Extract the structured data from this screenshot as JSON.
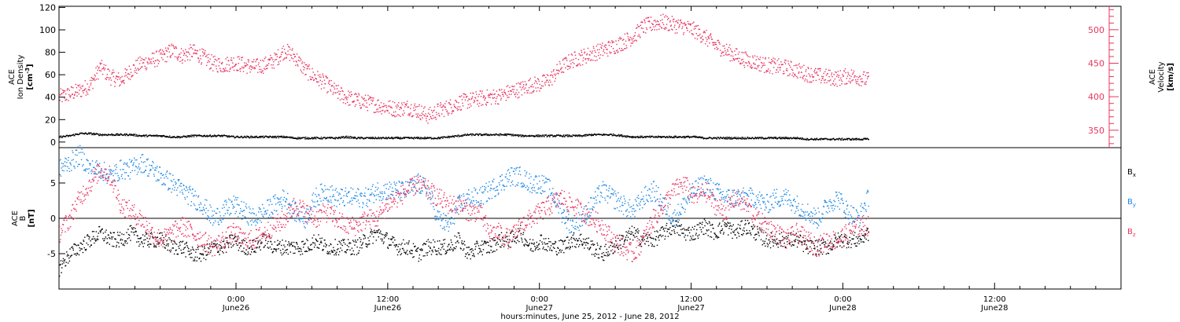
{
  "colors": {
    "black": "#000000",
    "pink": "#e8345f",
    "blue": "#1e88e5"
  },
  "chart_data": [
    {
      "type": "scatter",
      "panel": "top",
      "left_axis": {
        "label_lines": [
          "ACE",
          "Ion Density"
        ],
        "unit_base": "[cm",
        "unit_sup": "-3",
        "unit_end": "]",
        "ylim": [
          -5,
          121
        ],
        "ticks": [
          "0",
          "20",
          "40",
          "60",
          "80",
          "100",
          "120"
        ],
        "tick_values": [
          0,
          20,
          40,
          60,
          80,
          100,
          120
        ]
      },
      "right_axis": {
        "label_lines": [
          "ACE",
          "Velocity",
          "[km/s]"
        ],
        "ylim": [
          324,
          535
        ],
        "ticks": [
          "350",
          "400",
          "450",
          "500"
        ],
        "tick_values": [
          350,
          400,
          450,
          500
        ],
        "color": "#e8345f"
      },
      "series": [
        {
          "axis": "left",
          "color": "#000000",
          "x": [
            0,
            1,
            2,
            3,
            4,
            5,
            6,
            7,
            8,
            9,
            10,
            11,
            12,
            13,
            14,
            15,
            16,
            17,
            18,
            19,
            20,
            21,
            22,
            23,
            24,
            25,
            26,
            27,
            28,
            29,
            30,
            31,
            32,
            33,
            34,
            35,
            36,
            37,
            38,
            39,
            40,
            41,
            42,
            43,
            44,
            45,
            46,
            47,
            48,
            49,
            50,
            51,
            52,
            53,
            54,
            55,
            56,
            57,
            58,
            59,
            60,
            61,
            62,
            63,
            64,
            65,
            66,
            67,
            68,
            69,
            70,
            71,
            72,
            73,
            74,
            75,
            76,
            77,
            78,
            79
          ],
          "y": [
            5,
            6,
            8,
            8,
            7,
            7,
            7,
            7,
            6,
            6,
            6,
            5,
            5,
            6,
            6,
            6,
            6,
            5,
            5,
            5,
            5,
            5,
            5,
            4,
            4,
            4,
            4,
            4,
            5,
            4,
            4,
            4,
            4,
            4,
            4,
            4,
            4,
            4,
            5,
            6,
            7,
            7,
            7,
            7,
            7,
            6,
            6,
            6,
            6,
            6,
            6,
            6,
            7,
            7,
            7,
            6,
            5,
            5,
            5,
            5,
            5,
            5,
            5,
            4,
            4,
            4,
            4,
            4,
            4,
            4,
            4,
            4,
            4,
            3,
            3,
            3,
            3,
            3,
            3,
            3
          ]
        },
        {
          "axis": "right",
          "color": "#e8345f",
          "x": [
            0,
            1,
            2,
            3,
            4,
            5,
            6,
            7,
            8,
            9,
            10,
            11,
            12,
            13,
            14,
            15,
            16,
            17,
            18,
            19,
            20,
            21,
            22,
            23,
            24,
            25,
            26,
            27,
            28,
            29,
            30,
            31,
            32,
            33,
            34,
            35,
            36,
            37,
            38,
            39,
            40,
            41,
            42,
            43,
            44,
            45,
            46,
            47,
            48,
            49,
            50,
            51,
            52,
            53,
            54,
            55,
            56,
            57,
            58,
            59,
            60,
            61,
            62,
            63,
            64,
            65,
            66,
            67,
            68,
            69,
            70,
            71,
            72,
            73,
            74,
            75,
            76,
            77,
            78,
            79
          ],
          "y": [
            400,
            405,
            410,
            418,
            445,
            430,
            425,
            440,
            450,
            455,
            460,
            470,
            462,
            468,
            460,
            450,
            448,
            452,
            448,
            445,
            448,
            455,
            470,
            460,
            440,
            430,
            420,
            408,
            400,
            395,
            392,
            388,
            385,
            382,
            385,
            380,
            372,
            380,
            385,
            392,
            395,
            398,
            400,
            402,
            408,
            412,
            418,
            420,
            428,
            445,
            455,
            460,
            465,
            470,
            475,
            482,
            490,
            505,
            510,
            512,
            508,
            505,
            500,
            490,
            478,
            470,
            462,
            456,
            452,
            448,
            446,
            444,
            440,
            435,
            432,
            430,
            428,
            432,
            430,
            425
          ]
        }
      ]
    },
    {
      "type": "scatter",
      "panel": "bottom",
      "left_axis": {
        "label_lines": [
          "ACE",
          "B"
        ],
        "unit": "[nT]",
        "ylim": [
          -10,
          10
        ],
        "ticks": [
          "5",
          "0",
          "-5"
        ],
        "tick_values": [
          5,
          0,
          -5
        ]
      },
      "legend": [
        {
          "base": "B",
          "sub": "x",
          "color": "#000000"
        },
        {
          "base": "B",
          "sub": "y",
          "color": "#1e88e5"
        },
        {
          "base": "B",
          "sub": "z",
          "color": "#e8345f"
        }
      ],
      "series": [
        {
          "name": "Bx",
          "color": "#000000",
          "x": [
            0,
            1,
            2,
            3,
            4,
            5,
            6,
            7,
            8,
            9,
            10,
            11,
            12,
            13,
            14,
            15,
            16,
            17,
            18,
            19,
            20,
            21,
            22,
            23,
            24,
            25,
            26,
            27,
            28,
            29,
            30,
            31,
            32,
            33,
            34,
            35,
            36,
            37,
            38,
            39,
            40,
            41,
            42,
            43,
            44,
            45,
            46,
            47,
            48,
            49,
            50,
            51,
            52,
            53,
            54,
            55,
            56,
            57,
            58,
            59,
            60,
            61,
            62,
            63,
            64,
            65,
            66,
            67,
            68,
            69,
            70,
            71,
            72,
            73,
            74,
            75,
            76,
            77,
            78,
            79
          ],
          "y": [
            -7,
            -5,
            -4,
            -3,
            -2,
            -3,
            -3,
            -2,
            -3,
            -3,
            -3,
            -4,
            -4,
            -5,
            -5,
            -4,
            -4,
            -3,
            -4,
            -4,
            -3,
            -4,
            -4,
            -4,
            -4,
            -3,
            -4,
            -4,
            -4,
            -4,
            -3,
            -2,
            -3,
            -4,
            -4,
            -5,
            -4,
            -4,
            -4,
            -3,
            -5,
            -4,
            -4,
            -3,
            -3,
            -2,
            -4,
            -3,
            -4,
            -4,
            -3,
            -3,
            -4,
            -5,
            -4,
            -3,
            -2,
            -3,
            -3,
            -2,
            -1,
            -2,
            -2,
            -1,
            -2,
            -1,
            -2,
            -1,
            -2,
            -3,
            -3,
            -3,
            -3,
            -4,
            -4,
            -4,
            -3,
            -3,
            -3,
            -2
          ]
        },
        {
          "name": "By",
          "color": "#1e88e5",
          "x": [
            0,
            1,
            2,
            3,
            4,
            5,
            6,
            7,
            8,
            9,
            10,
            11,
            12,
            13,
            14,
            15,
            16,
            17,
            18,
            19,
            20,
            21,
            22,
            23,
            24,
            25,
            26,
            27,
            28,
            29,
            30,
            31,
            32,
            33,
            34,
            35,
            36,
            37,
            38,
            39,
            40,
            41,
            42,
            43,
            44,
            45,
            46,
            47,
            48,
            49,
            50,
            51,
            52,
            53,
            54,
            55,
            56,
            57,
            58,
            59,
            60,
            61,
            62,
            63,
            64,
            65,
            66,
            67,
            68,
            69,
            70,
            71,
            72,
            73,
            74,
            75,
            76,
            77,
            78,
            79
          ],
          "y": [
            7,
            8,
            9,
            7,
            7,
            6,
            7,
            7,
            8,
            7,
            6,
            5,
            4,
            3,
            2,
            0,
            1,
            2,
            1,
            0,
            1,
            2,
            3,
            1,
            0,
            3,
            4,
            3,
            3,
            3,
            3,
            4,
            4,
            4,
            4,
            5,
            4,
            0,
            -1,
            2,
            3,
            3,
            4,
            5,
            6,
            6,
            5,
            5,
            4,
            1,
            -1,
            0,
            2,
            4,
            3,
            2,
            1,
            3,
            4,
            2,
            0,
            2,
            4,
            5,
            4,
            3,
            3,
            3,
            3,
            2,
            3,
            3,
            2,
            1,
            0,
            2,
            3,
            1,
            0,
            3
          ]
        },
        {
          "name": "Bz",
          "color": "#e8345f",
          "x": [
            0,
            1,
            2,
            3,
            4,
            5,
            6,
            7,
            8,
            9,
            10,
            11,
            12,
            13,
            14,
            15,
            16,
            17,
            18,
            19,
            20,
            21,
            22,
            23,
            24,
            25,
            26,
            27,
            28,
            29,
            30,
            31,
            32,
            33,
            34,
            35,
            36,
            37,
            38,
            39,
            40,
            41,
            42,
            43,
            44,
            45,
            46,
            47,
            48,
            49,
            50,
            51,
            52,
            53,
            54,
            55,
            56,
            57,
            58,
            59,
            60,
            61,
            62,
            63,
            64,
            65,
            66,
            67,
            68,
            69,
            70,
            71,
            72,
            73,
            74,
            75,
            76,
            77,
            78,
            79
          ],
          "y": [
            -2,
            0,
            3,
            5,
            7,
            6,
            2,
            1,
            0,
            -2,
            -3,
            -2,
            -1,
            -2,
            -3,
            -4,
            -3,
            -2,
            -3,
            -3,
            -2,
            -1,
            0,
            2,
            1,
            0,
            1,
            0,
            -1,
            -1,
            0,
            0,
            2,
            3,
            4,
            5,
            4,
            3,
            2,
            2,
            1,
            1,
            -2,
            -2,
            -3,
            -1,
            0,
            1,
            2,
            3,
            2,
            1,
            0,
            -1,
            -3,
            -4,
            -5,
            -3,
            0,
            2,
            4,
            5,
            3,
            4,
            2,
            1,
            3,
            2,
            0,
            -1,
            -2,
            -3,
            -2,
            -3,
            -4,
            -3,
            -3,
            -2,
            -1,
            -1
          ]
        }
      ]
    }
  ],
  "x_axis": {
    "x_range_hours": [
      -14,
      70
    ],
    "tick_hours": [
      0,
      12,
      24,
      36,
      48,
      60
    ],
    "tick_labels_top": [
      "0:00",
      "12:00",
      "0:00",
      "12:00",
      "0:00",
      "12:00"
    ],
    "tick_labels_bottom": [
      "June26",
      "June26",
      "June27",
      "June27",
      "June28",
      "June28"
    ],
    "title": "hours:minutes, June 25, 2012 - June 28, 2012"
  },
  "data_x_range": [
    -14,
    50
  ]
}
